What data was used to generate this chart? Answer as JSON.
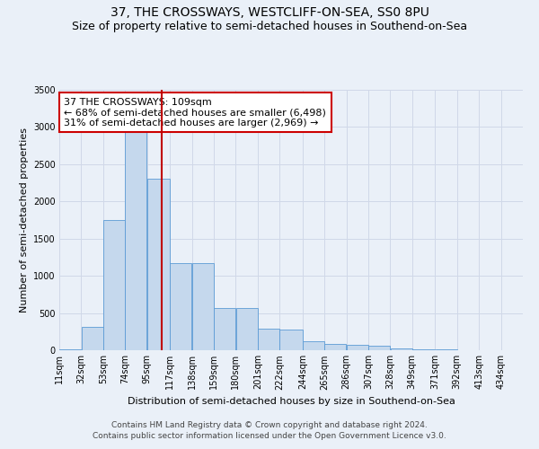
{
  "title": "37, THE CROSSWAYS, WESTCLIFF-ON-SEA, SS0 8PU",
  "subtitle": "Size of property relative to semi-detached houses in Southend-on-Sea",
  "xlabel": "Distribution of semi-detached houses by size in Southend-on-Sea",
  "ylabel": "Number of semi-detached properties",
  "footnote1": "Contains HM Land Registry data © Crown copyright and database right 2024.",
  "footnote2": "Contains public sector information licensed under the Open Government Licence v3.0.",
  "annotation_title": "37 THE CROSSWAYS: 109sqm",
  "annotation_line1": "← 68% of semi-detached houses are smaller (6,498)",
  "annotation_line2": "31% of semi-detached houses are larger (2,969) →",
  "property_size": 109,
  "bar_left_edges": [
    11,
    32,
    53,
    74,
    95,
    117,
    138,
    159,
    180,
    201,
    222,
    244,
    265,
    286,
    307,
    328,
    349,
    371,
    392,
    413
  ],
  "bar_widths": [
    21,
    21,
    21,
    21,
    22,
    21,
    21,
    21,
    21,
    21,
    22,
    21,
    21,
    21,
    21,
    21,
    22,
    21,
    21,
    21
  ],
  "bar_heights": [
    15,
    310,
    1750,
    3000,
    2300,
    1170,
    1170,
    570,
    570,
    290,
    280,
    125,
    90,
    70,
    60,
    25,
    10,
    8,
    5,
    2
  ],
  "bar_color": "#c5d8ed",
  "bar_edge_color": "#5b9bd5",
  "vline_x": 109,
  "vline_color": "#c00000",
  "grid_color": "#d0d8e8",
  "background_color": "#eaf0f8",
  "ylim": [
    0,
    3500
  ],
  "yticks": [
    0,
    500,
    1000,
    1500,
    2000,
    2500,
    3000,
    3500
  ],
  "xtick_labels": [
    "11sqm",
    "32sqm",
    "53sqm",
    "74sqm",
    "95sqm",
    "117sqm",
    "138sqm",
    "159sqm",
    "180sqm",
    "201sqm",
    "222sqm",
    "244sqm",
    "265sqm",
    "286sqm",
    "307sqm",
    "328sqm",
    "349sqm",
    "371sqm",
    "392sqm",
    "413sqm",
    "434sqm"
  ],
  "xtick_positions": [
    11,
    32,
    53,
    74,
    95,
    117,
    138,
    159,
    180,
    201,
    222,
    244,
    265,
    286,
    307,
    328,
    349,
    371,
    392,
    413,
    434
  ],
  "annotation_box_color": "#ffffff",
  "annotation_box_edge_color": "#cc0000",
  "title_fontsize": 10,
  "subtitle_fontsize": 9,
  "axis_label_fontsize": 8,
  "tick_fontsize": 7,
  "annotation_fontsize": 8,
  "footnote_fontsize": 6.5
}
